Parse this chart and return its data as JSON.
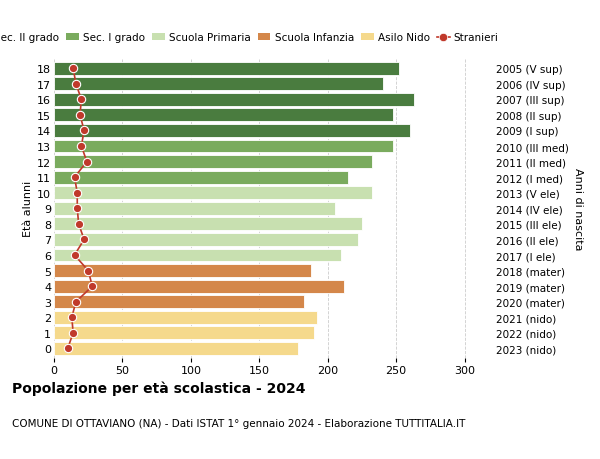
{
  "ages": [
    18,
    17,
    16,
    15,
    14,
    13,
    12,
    11,
    10,
    9,
    8,
    7,
    6,
    5,
    4,
    3,
    2,
    1,
    0
  ],
  "bar_values": [
    252,
    240,
    263,
    248,
    260,
    248,
    232,
    215,
    232,
    205,
    225,
    222,
    210,
    188,
    212,
    183,
    192,
    190,
    178
  ],
  "stranieri_values": [
    14,
    16,
    20,
    19,
    22,
    20,
    24,
    15,
    17,
    17,
    18,
    22,
    15,
    25,
    28,
    16,
    13,
    14,
    10
  ],
  "right_labels": [
    "2005 (V sup)",
    "2006 (IV sup)",
    "2007 (III sup)",
    "2008 (II sup)",
    "2009 (I sup)",
    "2010 (III med)",
    "2011 (II med)",
    "2012 (I med)",
    "2013 (V ele)",
    "2014 (IV ele)",
    "2015 (III ele)",
    "2016 (II ele)",
    "2017 (I ele)",
    "2018 (mater)",
    "2019 (mater)",
    "2020 (mater)",
    "2021 (nido)",
    "2022 (nido)",
    "2023 (nido)"
  ],
  "bar_colors": [
    "#4a7c3f",
    "#4a7c3f",
    "#4a7c3f",
    "#4a7c3f",
    "#4a7c3f",
    "#7aab5e",
    "#7aab5e",
    "#7aab5e",
    "#c8e0b0",
    "#c8e0b0",
    "#c8e0b0",
    "#c8e0b0",
    "#c8e0b0",
    "#d4874a",
    "#d4874a",
    "#d4874a",
    "#f5d98c",
    "#f5d98c",
    "#f5d98c"
  ],
  "legend_labels": [
    "Sec. II grado",
    "Sec. I grado",
    "Scuola Primaria",
    "Scuola Infanzia",
    "Asilo Nido",
    "Stranieri"
  ],
  "legend_colors": [
    "#4a7c3f",
    "#7aab5e",
    "#c8e0b0",
    "#d4874a",
    "#f5d98c",
    "#c0392b"
  ],
  "title": "Popolazione per età scolastica - 2024",
  "subtitle": "COMUNE DI OTTAVIANO (NA) - Dati ISTAT 1° gennaio 2024 - Elaborazione TUTTITALIA.IT",
  "ylabel_left": "Età alunni",
  "ylabel_right": "Anni di nascita",
  "xlim": [
    0,
    320
  ],
  "xticks": [
    0,
    50,
    100,
    150,
    200,
    250,
    300
  ],
  "background_color": "#ffffff",
  "grid_color": "#cccccc",
  "stranieri_color": "#c0392b"
}
